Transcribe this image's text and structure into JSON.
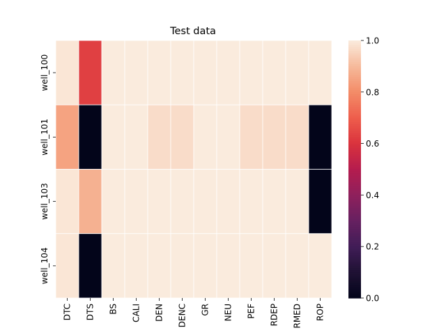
{
  "chart_data": {
    "type": "heatmap",
    "title": "Test data",
    "xlabel": "",
    "ylabel": "",
    "columns": [
      "DTC",
      "DTS",
      "BS",
      "CALI",
      "DEN",
      "DENC",
      "GR",
      "NEU",
      "PEF",
      "RDEP",
      "RMED",
      "ROP"
    ],
    "rows": [
      "well_100",
      "well_101",
      "well_103",
      "well_104"
    ],
    "values": [
      [
        0.99,
        0.63,
        1.0,
        1.0,
        1.0,
        1.0,
        1.0,
        1.0,
        1.0,
        1.0,
        1.0,
        1.0
      ],
      [
        0.85,
        0.0,
        1.0,
        1.0,
        0.97,
        0.97,
        1.0,
        1.0,
        0.97,
        0.97,
        0.97,
        0.0
      ],
      [
        0.99,
        0.88,
        1.0,
        1.0,
        1.0,
        1.0,
        1.0,
        1.0,
        1.0,
        1.0,
        1.0,
        0.0
      ],
      [
        0.99,
        0.0,
        1.0,
        1.0,
        1.0,
        1.0,
        1.0,
        1.0,
        1.0,
        1.0,
        1.0,
        1.0
      ]
    ],
    "colorbar": {
      "range": [
        0.0,
        1.0
      ],
      "ticks": [
        0.0,
        0.2,
        0.4,
        0.6,
        0.8,
        1.0
      ],
      "tick_labels": [
        "0.0",
        "0.2",
        "0.4",
        "0.6",
        "0.8",
        "1.0"
      ],
      "colormap": "rocket"
    },
    "grid": false,
    "cell_border_color": "#ffffff"
  }
}
